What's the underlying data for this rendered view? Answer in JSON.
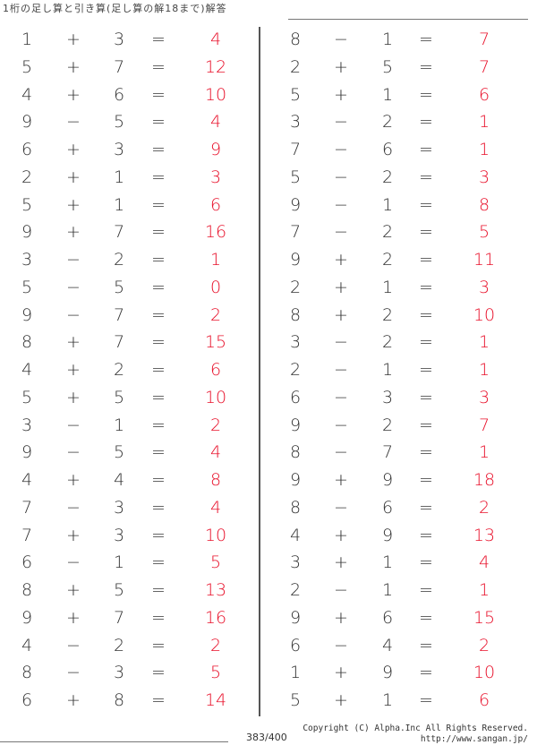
{
  "title": "1桁の足し算と引き算(足し算の解18まで)解答",
  "page": "383/400",
  "copyright": "Copyright (C) Alpha.Inc All Rights Reserved.",
  "url": "http://www.sangan.jp/",
  "answer_color": "#e8102a",
  "left": [
    [
      "1",
      "+",
      "3",
      "=",
      "4"
    ],
    [
      "5",
      "+",
      "7",
      "=",
      "12"
    ],
    [
      "4",
      "+",
      "6",
      "=",
      "10"
    ],
    [
      "9",
      "−",
      "5",
      "=",
      "4"
    ],
    [
      "6",
      "+",
      "3",
      "=",
      "9"
    ],
    [
      "2",
      "+",
      "1",
      "=",
      "3"
    ],
    [
      "5",
      "+",
      "1",
      "=",
      "6"
    ],
    [
      "9",
      "+",
      "7",
      "=",
      "16"
    ],
    [
      "3",
      "−",
      "2",
      "=",
      "1"
    ],
    [
      "5",
      "−",
      "5",
      "=",
      "0"
    ],
    [
      "9",
      "−",
      "7",
      "=",
      "2"
    ],
    [
      "8",
      "+",
      "7",
      "=",
      "15"
    ],
    [
      "4",
      "+",
      "2",
      "=",
      "6"
    ],
    [
      "5",
      "+",
      "5",
      "=",
      "10"
    ],
    [
      "3",
      "−",
      "1",
      "=",
      "2"
    ],
    [
      "9",
      "−",
      "5",
      "=",
      "4"
    ],
    [
      "4",
      "+",
      "4",
      "=",
      "8"
    ],
    [
      "7",
      "−",
      "3",
      "=",
      "4"
    ],
    [
      "7",
      "+",
      "3",
      "=",
      "10"
    ],
    [
      "6",
      "−",
      "1",
      "=",
      "5"
    ],
    [
      "8",
      "+",
      "5",
      "=",
      "13"
    ],
    [
      "9",
      "+",
      "7",
      "=",
      "16"
    ],
    [
      "4",
      "−",
      "2",
      "=",
      "2"
    ],
    [
      "8",
      "−",
      "3",
      "=",
      "5"
    ],
    [
      "6",
      "+",
      "8",
      "=",
      "14"
    ]
  ],
  "right": [
    [
      "8",
      "−",
      "1",
      "=",
      "7"
    ],
    [
      "2",
      "+",
      "5",
      "=",
      "7"
    ],
    [
      "5",
      "+",
      "1",
      "=",
      "6"
    ],
    [
      "3",
      "−",
      "2",
      "=",
      "1"
    ],
    [
      "7",
      "−",
      "6",
      "=",
      "1"
    ],
    [
      "5",
      "−",
      "2",
      "=",
      "3"
    ],
    [
      "9",
      "−",
      "1",
      "=",
      "8"
    ],
    [
      "7",
      "−",
      "2",
      "=",
      "5"
    ],
    [
      "9",
      "+",
      "2",
      "=",
      "11"
    ],
    [
      "2",
      "+",
      "1",
      "=",
      "3"
    ],
    [
      "8",
      "+",
      "2",
      "=",
      "10"
    ],
    [
      "3",
      "−",
      "2",
      "=",
      "1"
    ],
    [
      "2",
      "−",
      "1",
      "=",
      "1"
    ],
    [
      "6",
      "−",
      "3",
      "=",
      "3"
    ],
    [
      "9",
      "−",
      "2",
      "=",
      "7"
    ],
    [
      "8",
      "−",
      "7",
      "=",
      "1"
    ],
    [
      "9",
      "+",
      "9",
      "=",
      "18"
    ],
    [
      "8",
      "−",
      "6",
      "=",
      "2"
    ],
    [
      "4",
      "+",
      "9",
      "=",
      "13"
    ],
    [
      "3",
      "+",
      "1",
      "=",
      "4"
    ],
    [
      "2",
      "−",
      "1",
      "=",
      "1"
    ],
    [
      "9",
      "+",
      "6",
      "=",
      "15"
    ],
    [
      "6",
      "−",
      "4",
      "=",
      "2"
    ],
    [
      "1",
      "+",
      "9",
      "=",
      "10"
    ],
    [
      "5",
      "+",
      "1",
      "=",
      "6"
    ]
  ]
}
